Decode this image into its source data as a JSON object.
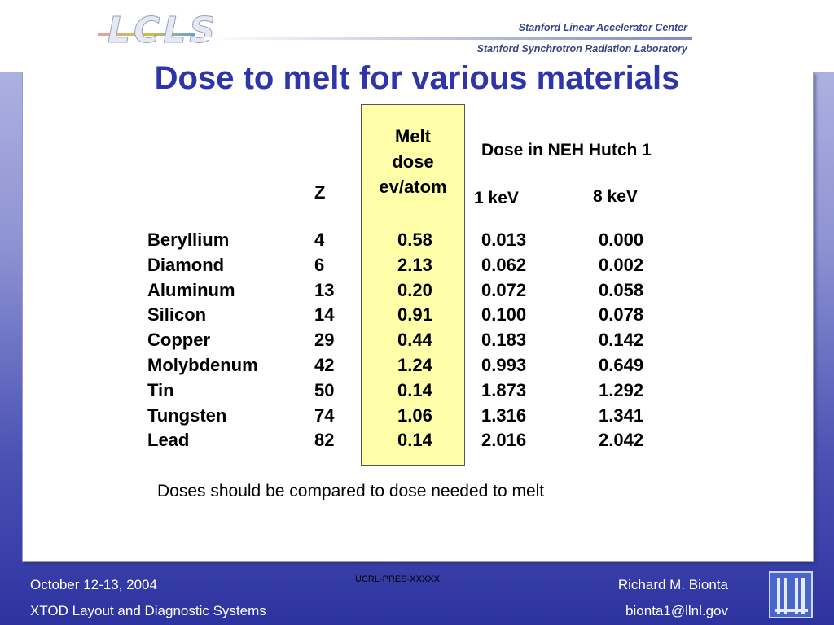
{
  "header": {
    "logo_text": "LCLS",
    "lab_line1": "Stanford Linear Accelerator Center",
    "lab_line2": "Stanford Synchrotron Radiation Laboratory"
  },
  "slide": {
    "title": "Dose to melt for various materials",
    "headers": {
      "z": "Z",
      "melt_line1": "Melt",
      "melt_line2": "dose",
      "melt_line3": "ev/atom",
      "dose_group": "Dose in NEH Hutch 1",
      "kev1": "1 keV",
      "kev8": "8 keV"
    },
    "rows": [
      {
        "name": "Beryllium",
        "z": "4",
        "melt": "0.58",
        "kev1": "0.013",
        "kev8": "0.000"
      },
      {
        "name": "Diamond",
        "z": "6",
        "melt": "2.13",
        "kev1": "0.062",
        "kev8": "0.002"
      },
      {
        "name": "Aluminum",
        "z": "13",
        "melt": "0.20",
        "kev1": "0.072",
        "kev8": "0.058"
      },
      {
        "name": "Silicon",
        "z": "14",
        "melt": "0.91",
        "kev1": "0.100",
        "kev8": "0.078"
      },
      {
        "name": "Copper",
        "z": "29",
        "melt": "0.44",
        "kev1": "0.183",
        "kev8": "0.142"
      },
      {
        "name": "Molybdenum",
        "z": "42",
        "melt": "1.24",
        "kev1": "0.993",
        "kev8": "0.649"
      },
      {
        "name": "Tin",
        "z": "50",
        "melt": "0.14",
        "kev1": "1.873",
        "kev8": "1.292"
      },
      {
        "name": "Tungsten",
        "z": "74",
        "melt": "1.06",
        "kev1": "1.316",
        "kev8": "1.341"
      },
      {
        "name": "Lead",
        "z": "82",
        "melt": "0.14",
        "kev1": "2.016",
        "kev8": "2.042"
      }
    ],
    "note": "Doses should be compared to dose needed to melt"
  },
  "footer": {
    "date": "October 12-13, 2004",
    "event": "XTOD Layout and Diagnostic Systems",
    "code": "UCRL-PRES-XXXXX",
    "author": "Richard M. Bionta",
    "email": "bionta1@llnl.gov"
  }
}
